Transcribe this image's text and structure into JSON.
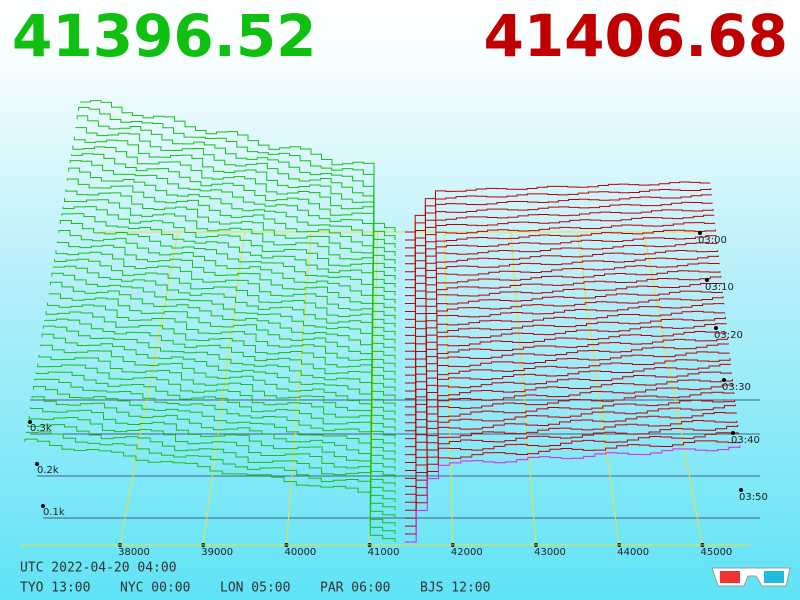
{
  "header": {
    "bid_price": "41396.52",
    "ask_price": "41406.68"
  },
  "price_axis": [
    "38000",
    "39000",
    "40000",
    "41000",
    "42000",
    "43000",
    "44000",
    "45000"
  ],
  "depth_axis": [
    "0.3k",
    "0.2k",
    "0.1k"
  ],
  "time_axis": [
    "03:00",
    "03:10",
    "03:20",
    "03:30",
    "03:40",
    "03:50"
  ],
  "footer": {
    "utc": "UTC 2022-04-20 04:00",
    "cities": [
      "TYO 13:00",
      "NYC 00:00",
      "LON 05:00",
      "PAR 06:00",
      "BJS 12:00"
    ]
  }
}
